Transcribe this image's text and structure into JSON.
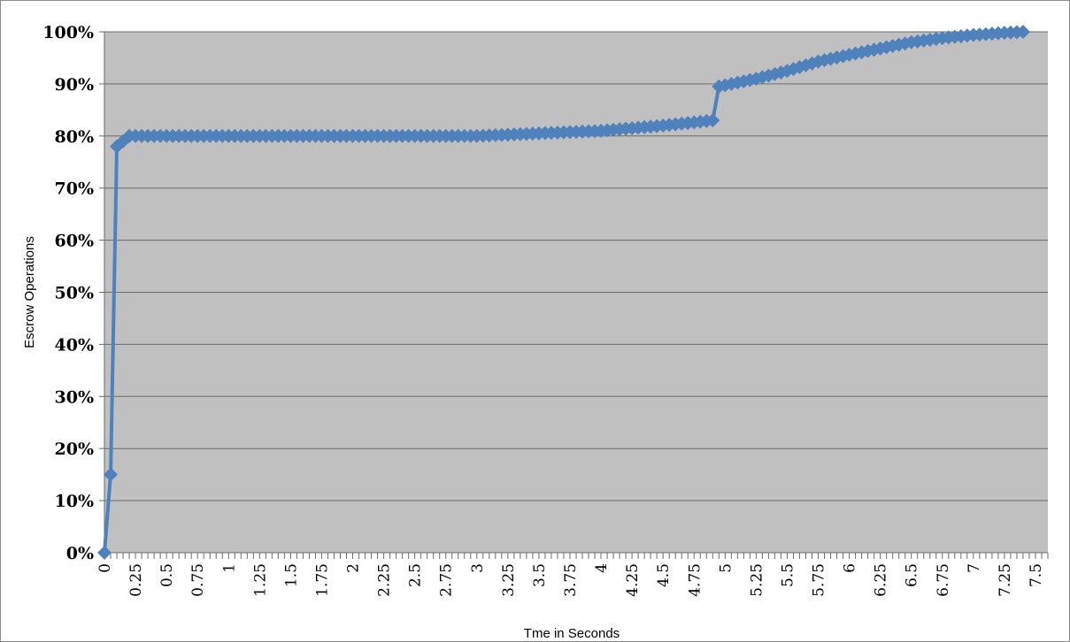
{
  "chart_data": {
    "type": "line",
    "title": "",
    "xlabel": "Tme in Seconds",
    "ylabel": "Escrow Operations",
    "xlim": [
      0,
      7.6
    ],
    "ylim": [
      0,
      100
    ],
    "grid": true,
    "legend": "none",
    "plot_background": "#c0c0c0",
    "series_color": "#4f81bd",
    "x_tick_labels": [
      "0",
      "0.25",
      "0.5",
      "0.75",
      "1",
      "1.25",
      "1.5",
      "1.75",
      "2",
      "2.25",
      "2.5",
      "2.75",
      "3",
      "3.25",
      "3.5",
      "3.75",
      "4",
      "4.25",
      "4.5",
      "4.75",
      "5",
      "5.25",
      "5.5",
      "5.75",
      "6",
      "6.25",
      "6.5",
      "6.75",
      "7",
      "7.25",
      "7.5"
    ],
    "y_tick_labels": [
      "0%",
      "10%",
      "20%",
      "30%",
      "40%",
      "50%",
      "60%",
      "70%",
      "80%",
      "90%",
      "100%"
    ],
    "series": [
      {
        "x": [
          0,
          0.05,
          0.1,
          0.15,
          0.2,
          0.5,
          1,
          1.5,
          2,
          2.5,
          3,
          3.5,
          4,
          4.5,
          4.9,
          4.95,
          5.25,
          5.5,
          5.75,
          6,
          6.25,
          6.5,
          6.75,
          7,
          7.25,
          7.4
        ],
        "y": [
          0,
          15,
          78,
          79,
          80,
          80,
          80,
          80,
          80,
          80,
          80,
          80.5,
          81,
          82,
          83,
          89.5,
          91,
          92.5,
          94.3,
          95.6,
          96.8,
          98,
          98.8,
          99.4,
          99.8,
          100
        ]
      }
    ]
  }
}
